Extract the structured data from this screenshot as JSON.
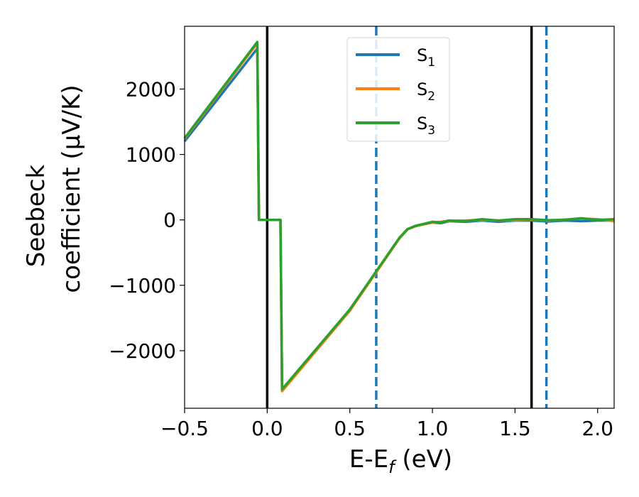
{
  "chart_data": {
    "type": "line",
    "xlabel": "E-E_f (eV)",
    "xlabel_main": "E-E",
    "xlabel_sub": "f",
    "xlabel_tail": " (eV)",
    "ylabel_line1": "Seebeck",
    "ylabel_line2": "coefficient  (μV/K)",
    "xlim": [
      -0.5,
      2.1
    ],
    "ylim": [
      -2880,
      2960
    ],
    "xticks": [
      -0.5,
      0.0,
      0.5,
      1.0,
      1.5,
      2.0
    ],
    "xtick_labels": [
      "−0.5",
      "0.0",
      "0.5",
      "1.0",
      "1.5",
      "2.0"
    ],
    "yticks": [
      2000,
      1000,
      0,
      -1000,
      -2000
    ],
    "ytick_labels": [
      "2000",
      "1000",
      "0",
      "−1000",
      "−2000"
    ],
    "grid": false,
    "legend_position": "top-center",
    "vertical_lines": [
      {
        "x": 0.0,
        "style": "solid",
        "color": "#000000"
      },
      {
        "x": 1.6,
        "style": "solid",
        "color": "#000000"
      },
      {
        "x": 0.66,
        "style": "dashed",
        "color": "#1f77b4"
      },
      {
        "x": 1.69,
        "style": "dashed",
        "color": "#1f77b4"
      }
    ],
    "series": [
      {
        "name": "S_1",
        "label_main": "S",
        "label_sub": "1",
        "color": "#1f77b4",
        "x": [
          -0.5,
          -0.06,
          -0.05,
          0.08,
          0.09,
          0.5,
          0.8,
          0.85,
          0.9,
          1.0,
          1.05,
          1.1,
          1.2,
          1.3,
          1.4,
          1.5,
          1.6,
          1.7,
          1.8,
          1.9,
          2.0,
          2.1
        ],
        "y": [
          1200,
          2620,
          0,
          0,
          -2600,
          -1380,
          -280,
          -140,
          -90,
          -40,
          -50,
          -20,
          -30,
          -10,
          -30,
          -10,
          -10,
          -25,
          -10,
          -20,
          -10,
          -10
        ]
      },
      {
        "name": "S_2",
        "label_main": "S",
        "label_sub": "2",
        "color": "#ff7f0e",
        "x": [
          -0.5,
          -0.06,
          -0.05,
          0.08,
          0.09,
          0.5,
          0.8,
          0.85,
          0.9,
          1.0,
          1.05,
          1.1,
          1.2,
          1.3,
          1.4,
          1.5,
          1.6,
          1.7,
          1.8,
          1.9,
          2.0,
          2.1
        ],
        "y": [
          1240,
          2700,
          0,
          0,
          -2620,
          -1390,
          -285,
          -145,
          -95,
          -40,
          -30,
          -15,
          -10,
          0,
          -10,
          -5,
          5,
          -10,
          5,
          20,
          10,
          -20
        ]
      },
      {
        "name": "S_3",
        "label_main": "S",
        "label_sub": "3",
        "color": "#2ca02c",
        "x": [
          -0.5,
          -0.06,
          -0.05,
          0.08,
          0.09,
          0.5,
          0.8,
          0.85,
          0.9,
          1.0,
          1.05,
          1.1,
          1.2,
          1.3,
          1.4,
          1.5,
          1.6,
          1.7,
          1.8,
          1.9,
          2.0,
          2.1
        ],
        "y": [
          1250,
          2720,
          0,
          0,
          -2590,
          -1370,
          -275,
          -140,
          -90,
          -30,
          -40,
          -10,
          -20,
          10,
          -10,
          10,
          10,
          -5,
          0,
          25,
          0,
          10
        ]
      }
    ]
  }
}
